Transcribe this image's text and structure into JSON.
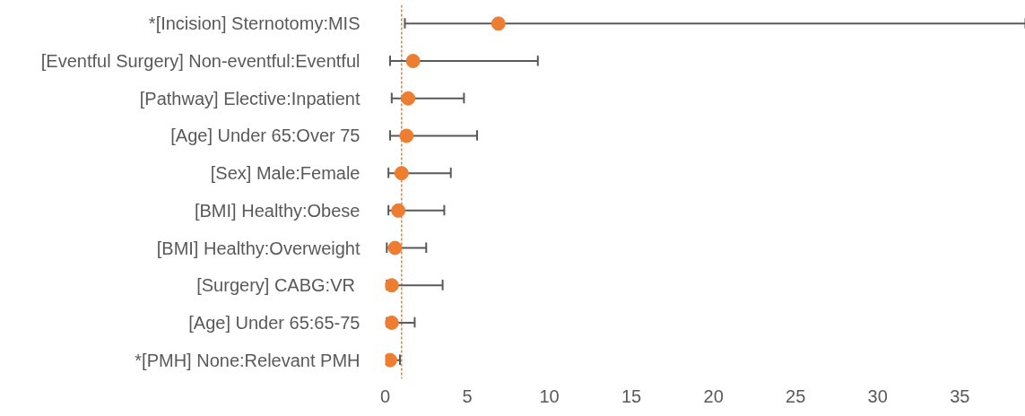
{
  "chart_data": {
    "type": "scatter",
    "orientation": "horizontal",
    "categories": [
      "*[Incision] Sternotomy:MIS",
      "[Eventful Surgery] Non-eventful:Eventful",
      "[Pathway] Elective:Inpatient",
      "[Age] Under 65:Over 75",
      "[Sex] Male:Female",
      "[BMI] Healthy:Obese",
      "[BMI] Healthy:Overweight",
      "[Surgery]  CABG:VR",
      "[Age] Under 65:65-75",
      "*[PMH] None:Relevant PMH"
    ],
    "values": [
      6.9,
      1.7,
      1.4,
      1.3,
      1.0,
      0.8,
      0.6,
      0.4,
      0.4,
      0.3
    ],
    "errors": [
      [
        1.2,
        39
      ],
      [
        0.3,
        9.3
      ],
      [
        0.4,
        4.8
      ],
      [
        0.3,
        5.6
      ],
      [
        0.2,
        4.0
      ],
      [
        0.2,
        3.6
      ],
      [
        0.1,
        2.5
      ],
      [
        0.1,
        3.5
      ],
      [
        0.1,
        1.8
      ],
      [
        0.1,
        0.9
      ]
    ],
    "color": "#ed7d31",
    "marker": "circle",
    "xlim": [
      0,
      39
    ],
    "xticks": [
      0,
      5,
      10,
      15,
      20,
      25,
      30,
      35
    ],
    "ref_lines": [
      {
        "axis": "x",
        "value": 1,
        "color": "#ed7d31",
        "line_style": "dashed"
      }
    ]
  }
}
